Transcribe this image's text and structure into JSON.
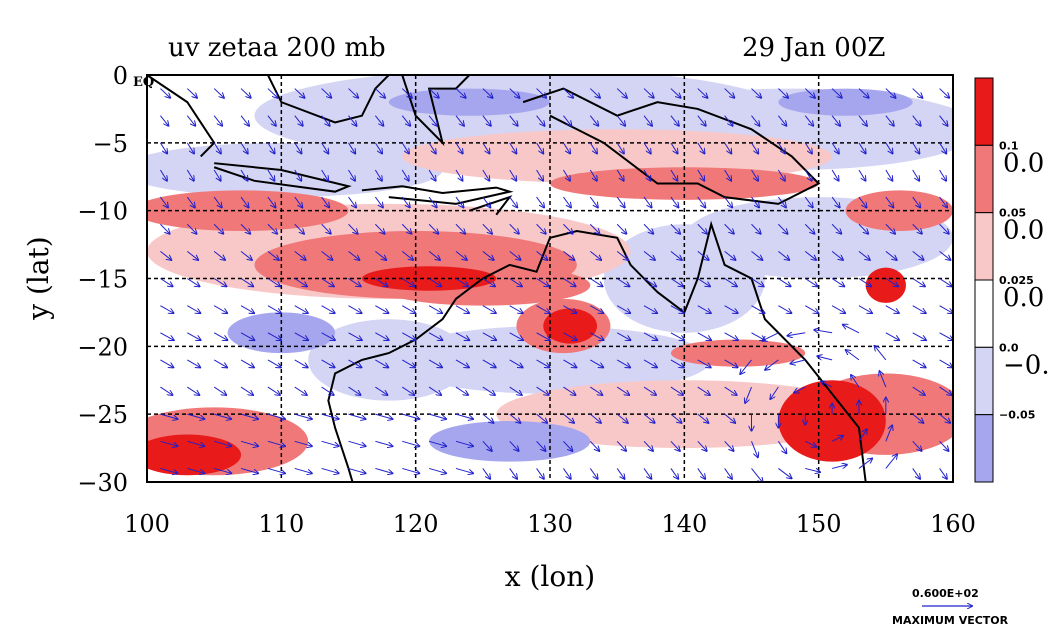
{
  "chart_data": {
    "type": "heatmap",
    "title_left": "uv zetaa 200 mb",
    "title_right": "29 Jan 00Z",
    "xlabel": "x (lon)",
    "ylabel": "y (lat)",
    "xlim": [
      100,
      160
    ],
    "ylim": [
      -30,
      0
    ],
    "x_ticks": [
      "100",
      "110",
      "120",
      "130",
      "140",
      "150",
      "160"
    ],
    "y_ticks": [
      "0",
      "−5",
      "−10",
      "−15",
      "−20",
      "−25",
      "−30"
    ],
    "x_tick_values": [
      100,
      110,
      120,
      130,
      140,
      150,
      160
    ],
    "y_tick_values": [
      0,
      -5,
      -10,
      -15,
      -20,
      -25,
      -30
    ],
    "corner_label": "EQ",
    "grid": true,
    "colorbar": {
      "placement": "right",
      "levels": [
        "0.1",
        "0.05",
        "0.025",
        "0.0",
        "−0.05"
      ],
      "big_labels": [
        "0.0",
        "0.0",
        "0.0",
        "−0."
      ],
      "colors": [
        "#e81a1a",
        "#f07878",
        "#f8c8c8",
        "#ffffff",
        "#d4d4f4",
        "#a6a6ee"
      ]
    },
    "vector_legend": {
      "value": "0.600E+02",
      "label": "MAXIMUM VECTOR"
    },
    "field_colors": {
      "strong_positive": "#e81a1a",
      "positive": "#f07878",
      "weak_positive": "#f8c8c8",
      "neutral": "#ffffff",
      "weak_negative": "#d4d4f4",
      "negative": "#a6a6ee",
      "vectors": "#2020cc",
      "coastline": "#000000"
    }
  }
}
